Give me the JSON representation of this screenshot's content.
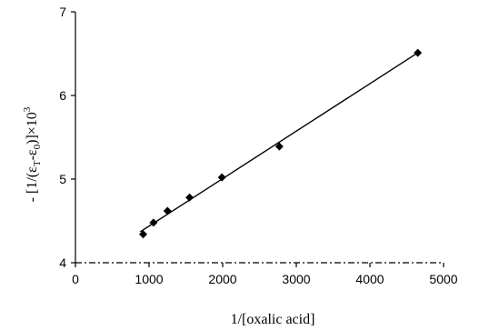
{
  "chart_data": {
    "type": "scatter",
    "title": "",
    "xlabel": "1/[oxalic acid]",
    "ylabel": "- [1/(εT-ε0)]×10³",
    "ylabel_parts": {
      "prefix": "- [1/(ε",
      "sub1": "T",
      "mid": "-ε",
      "sub2": "0",
      "suffix": ")]×10",
      "sup": "3"
    },
    "xlim": [
      0,
      5000
    ],
    "ylim": [
      4,
      7
    ],
    "xticks": [
      "0",
      "1000",
      "2000",
      "3000",
      "4000",
      "5000"
    ],
    "yticks": [
      "4",
      "5",
      "6",
      "7"
    ],
    "grid": false,
    "legend": "none",
    "series": [
      {
        "points": [
          {
            "x": 920,
            "y": 4.34
          },
          {
            "x": 1060,
            "y": 4.48
          },
          {
            "x": 1250,
            "y": 4.62
          },
          {
            "x": 1550,
            "y": 4.78
          },
          {
            "x": 1990,
            "y": 5.02
          },
          {
            "x": 2770,
            "y": 5.39
          },
          {
            "x": 4650,
            "y": 6.51
          }
        ],
        "marker": "diamond",
        "color": "#000000"
      }
    ],
    "trendline": {
      "x": [
        880,
        4650
      ],
      "y": [
        4.37,
        6.51
      ]
    }
  }
}
